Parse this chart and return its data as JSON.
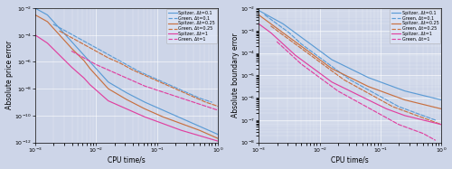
{
  "bg_color": "#cdd5e8",
  "fig_bg": "#cdd5e8",
  "colors": {
    "blue": "#5b9bd5",
    "orange": "#c87040",
    "magenta": "#e040a0"
  },
  "left_ylabel": "Absolute price error",
  "right_ylabel": "Absolute boundary error",
  "xlabel": "CPU time/s",
  "legend_entries": [
    [
      "Spitzer, Δt=0.1",
      "solid",
      "blue"
    ],
    [
      "Green, Δt=0.1",
      "dashed",
      "blue"
    ],
    [
      "Spitzer, Δt=0.25",
      "solid",
      "orange"
    ],
    [
      "Green, Δt=0.25",
      "dashed",
      "orange"
    ],
    [
      "Spitzer, Δt=1",
      "solid",
      "magenta"
    ],
    [
      "Green, Δt=1",
      "dashed",
      "magenta"
    ]
  ],
  "left_xlim": [
    -3,
    0
  ],
  "left_ylim": [
    -12,
    -2
  ],
  "right_xlim": [
    -3,
    0
  ],
  "right_ylim": [
    -8,
    -2
  ],
  "left_lines": {
    "spitzer_01": {
      "x": [
        -3.0,
        -2.8,
        -2.6,
        -2.4,
        -2.2,
        -2.1,
        -2.0,
        -1.9,
        -1.8,
        -1.5,
        -1.2,
        -0.9,
        -0.6,
        -0.3,
        0.0
      ],
      "y": [
        -2.0,
        -2.5,
        -3.5,
        -4.5,
        -5.5,
        -6.0,
        -6.5,
        -7.0,
        -7.5,
        -8.3,
        -9.0,
        -9.6,
        -10.2,
        -10.8,
        -11.4
      ]
    },
    "green_01": {
      "x": [
        -2.7,
        -2.5,
        -2.3,
        -2.1,
        -1.9,
        -1.7,
        -1.5,
        -1.3,
        -1.1,
        -0.9,
        -0.7,
        -0.5,
        -0.3,
        -0.1
      ],
      "y": [
        -3.2,
        -3.7,
        -4.2,
        -4.7,
        -5.2,
        -5.7,
        -6.2,
        -6.7,
        -7.1,
        -7.5,
        -7.9,
        -8.3,
        -8.7,
        -9.0
      ]
    },
    "spitzer_025": {
      "x": [
        -3.0,
        -2.8,
        -2.6,
        -2.4,
        -2.2,
        -2.1,
        -2.0,
        -1.9,
        -1.8,
        -1.5,
        -1.2,
        -0.9,
        -0.6,
        -0.3,
        0.0
      ],
      "y": [
        -2.5,
        -3.0,
        -4.0,
        -5.0,
        -5.9,
        -6.5,
        -7.0,
        -7.5,
        -8.0,
        -8.8,
        -9.5,
        -10.1,
        -10.6,
        -11.1,
        -11.7
      ]
    },
    "green_025": {
      "x": [
        -2.6,
        -2.4,
        -2.2,
        -2.0,
        -1.8,
        -1.6,
        -1.4,
        -1.2,
        -1.0,
        -0.8,
        -0.6,
        -0.4,
        -0.2,
        0.0
      ],
      "y": [
        -3.7,
        -4.2,
        -4.7,
        -5.2,
        -5.7,
        -6.1,
        -6.6,
        -7.0,
        -7.4,
        -7.8,
        -8.2,
        -8.6,
        -9.0,
        -9.3
      ]
    },
    "spitzer_1": {
      "x": [
        -3.0,
        -2.8,
        -2.6,
        -2.4,
        -2.2,
        -2.1,
        -2.0,
        -1.9,
        -1.8,
        -1.5,
        -1.2,
        -0.9,
        -0.6,
        -0.3,
        0.0
      ],
      "y": [
        -4.0,
        -4.6,
        -5.5,
        -6.4,
        -7.2,
        -7.7,
        -8.1,
        -8.5,
        -8.9,
        -9.5,
        -10.1,
        -10.6,
        -11.1,
        -11.5,
        -11.9
      ]
    },
    "green_1": {
      "x": [
        -2.4,
        -2.2,
        -2.0,
        -1.8,
        -1.6,
        -1.4,
        -1.2,
        -1.0,
        -0.8,
        -0.6,
        -0.4,
        -0.2,
        0.0
      ],
      "y": [
        -5.2,
        -5.7,
        -6.2,
        -6.6,
        -7.0,
        -7.4,
        -7.8,
        -8.1,
        -8.4,
        -8.7,
        -9.0,
        -9.3,
        -9.6
      ]
    }
  },
  "right_lines": {
    "spitzer_01": {
      "x": [
        -3.0,
        -2.8,
        -2.6,
        -2.4,
        -2.2,
        -2.0,
        -1.8,
        -1.5,
        -1.2,
        -0.9,
        -0.6,
        -0.3,
        0.0
      ],
      "y": [
        -2.1,
        -2.4,
        -2.7,
        -3.1,
        -3.5,
        -3.9,
        -4.3,
        -4.7,
        -5.1,
        -5.4,
        -5.7,
        -5.9,
        -6.1
      ]
    },
    "green_01": {
      "x": [
        -2.9,
        -2.7,
        -2.5,
        -2.3,
        -2.1,
        -1.9,
        -1.7,
        -1.5,
        -1.3,
        -1.1,
        -0.9,
        -0.7,
        -0.5,
        -0.3,
        -0.1
      ],
      "y": [
        -2.3,
        -2.7,
        -3.1,
        -3.6,
        -4.0,
        -4.4,
        -4.8,
        -5.2,
        -5.5,
        -5.8,
        -6.1,
        -6.4,
        -6.6,
        -6.8,
        -7.0
      ]
    },
    "spitzer_025": {
      "x": [
        -3.0,
        -2.8,
        -2.6,
        -2.4,
        -2.2,
        -2.0,
        -1.8,
        -1.5,
        -1.2,
        -0.9,
        -0.6,
        -0.3,
        0.0
      ],
      "y": [
        -2.3,
        -2.7,
        -3.1,
        -3.5,
        -3.9,
        -4.3,
        -4.7,
        -5.1,
        -5.5,
        -5.8,
        -6.1,
        -6.3,
        -6.5
      ]
    },
    "green_025": {
      "x": [
        -2.8,
        -2.6,
        -2.4,
        -2.2,
        -2.0,
        -1.8,
        -1.6,
        -1.4,
        -1.2,
        -1.0,
        -0.8,
        -0.6,
        -0.4,
        -0.2,
        0.0
      ],
      "y": [
        -2.8,
        -3.2,
        -3.6,
        -4.0,
        -4.4,
        -4.8,
        -5.2,
        -5.5,
        -5.8,
        -6.1,
        -6.4,
        -6.6,
        -6.8,
        -7.0,
        -7.2
      ]
    },
    "spitzer_1": {
      "x": [
        -3.0,
        -2.8,
        -2.6,
        -2.4,
        -2.2,
        -2.0,
        -1.8,
        -1.5,
        -1.2,
        -0.9,
        -0.6,
        -0.3,
        0.0
      ],
      "y": [
        -2.7,
        -3.1,
        -3.6,
        -4.1,
        -4.5,
        -4.9,
        -5.3,
        -5.7,
        -6.1,
        -6.5,
        -6.8,
        -7.0,
        -7.2
      ]
    },
    "green_1": {
      "x": [
        -2.7,
        -2.5,
        -2.3,
        -2.1,
        -1.9,
        -1.7,
        -1.5,
        -1.3,
        -1.1,
        -0.9,
        -0.7,
        -0.5,
        -0.3,
        -0.1
      ],
      "y": [
        -3.5,
        -4.0,
        -4.5,
        -4.9,
        -5.3,
        -5.7,
        -6.0,
        -6.3,
        -6.6,
        -6.9,
        -7.2,
        -7.4,
        -7.6,
        -7.9
      ]
    }
  }
}
